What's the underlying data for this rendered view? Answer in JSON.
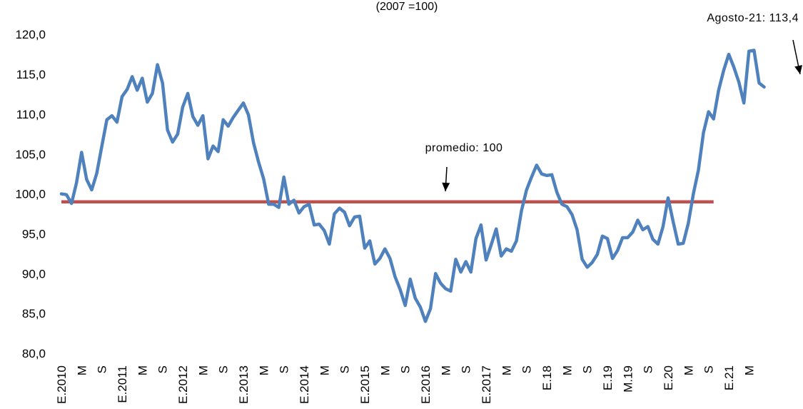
{
  "chart_data": {
    "type": "line",
    "title": "",
    "subtitle": "(2007 =100)",
    "xlabel": "",
    "ylabel": "",
    "ylim": [
      80,
      120
    ],
    "yticks": [
      "80,0",
      "85,0",
      "90,0",
      "95,0",
      "100,0",
      "105,0",
      "110,0",
      "115,0",
      "120,0"
    ],
    "ytick_values": [
      80,
      85,
      90,
      95,
      100,
      105,
      110,
      115,
      120
    ],
    "grid": false,
    "legend": "none",
    "x_tick_labels": [
      "E.2010",
      "M",
      "S",
      "E.2011",
      "M",
      "S",
      "E.2012",
      "M",
      "S",
      "E.2013",
      "M",
      "S",
      "E.2014",
      "M",
      "S",
      "E.2015",
      "M",
      "S",
      "E.2016",
      "M",
      "S",
      "E.2017",
      "M",
      "S",
      "E.18",
      "M",
      "S",
      "E.19",
      "M.19",
      "S",
      "E.20",
      "M",
      "S",
      "E.21",
      "M"
    ],
    "series": [
      {
        "color": "#4f81bd",
        "values": [
          100.0,
          99.9,
          98.8,
          101.4,
          105.2,
          101.8,
          100.5,
          102.6,
          106.0,
          109.3,
          109.8,
          109.0,
          112.2,
          113.1,
          114.7,
          113.0,
          114.5,
          111.5,
          112.6,
          116.2,
          113.9,
          108.0,
          106.5,
          107.5,
          110.9,
          112.6,
          109.7,
          108.6,
          109.8,
          104.4,
          106.0,
          105.3,
          109.3,
          108.5,
          109.6,
          110.5,
          111.4,
          109.9,
          106.4,
          104.0,
          101.9,
          98.7,
          98.7,
          98.3,
          102.1,
          98.7,
          99.2,
          97.6,
          98.4,
          98.7,
          96.1,
          96.2,
          95.4,
          93.7,
          97.5,
          98.2,
          97.7,
          96.0,
          97.1,
          97.2,
          93.2,
          94.1,
          91.2,
          91.9,
          93.1,
          91.9,
          89.6,
          88.0,
          86.0,
          89.3,
          86.9,
          85.8,
          84.0,
          85.6,
          90.0,
          88.8,
          88.1,
          87.8,
          91.8,
          90.2,
          91.5,
          90.2,
          94.4,
          96.1,
          91.7,
          93.6,
          95.6,
          92.2,
          93.1,
          92.8,
          94.1,
          97.9,
          100.5,
          102.1,
          103.6,
          102.5,
          102.3,
          102.4,
          100.2,
          98.7,
          98.4,
          97.4,
          95.5,
          91.8,
          90.8,
          91.4,
          92.4,
          94.7,
          94.4,
          91.9,
          92.9,
          94.5,
          94.5,
          95.2,
          96.7,
          95.5,
          95.9,
          94.3,
          93.7,
          95.9,
          99.5,
          96.5,
          93.7,
          93.8,
          96.3,
          100.0,
          103.0,
          107.7,
          110.3,
          109.4,
          113.0,
          115.5,
          117.5,
          115.9,
          114.0,
          111.4,
          117.9,
          118.0,
          113.9,
          113.4
        ]
      },
      {
        "color": "#c0504d",
        "values": [
          99,
          99
        ]
      }
    ],
    "annotations": [
      {
        "text": "Agosto-21: 113,4"
      },
      {
        "text": "promedio: 100"
      }
    ]
  }
}
